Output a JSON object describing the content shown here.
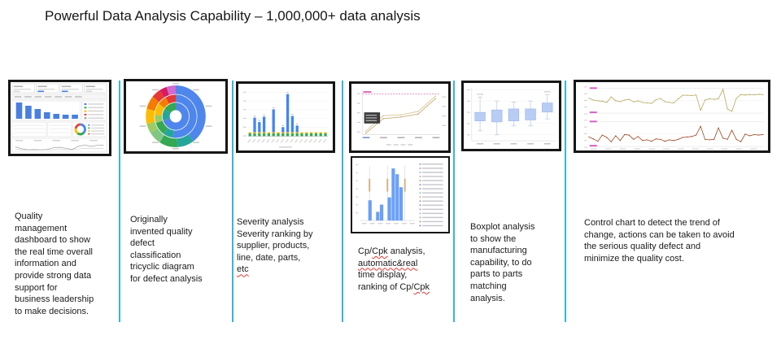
{
  "slide": {
    "title": "Powerful Data Analysis Capability – 1,000,000+ data analysis",
    "separator_color": "#35b4e5"
  },
  "panels": [
    {
      "id": "quality-dashboard",
      "description": "Quality\nmanagement\ndashboard to show\nthe real time overall\ninformation and\nprovide strong data\nsupport for\nbusiness leadership\nto make decisions.",
      "misspelled": [],
      "chart": {
        "type": "dashboard",
        "bar_values": [
          20,
          16,
          12,
          8,
          6,
          5,
          5
        ],
        "bar_color": "#4a7fe0",
        "donut_segments": [
          [
            "#4285f4",
            0.38
          ],
          [
            "#34a853",
            0.22
          ],
          [
            "#fbbc04",
            0.18
          ],
          [
            "#ea4335",
            0.22
          ]
        ],
        "trend_a": [
          0.5,
          0.25,
          0.1,
          0.12,
          0.1,
          0.12,
          0.35,
          0.45,
          0.3,
          0.15,
          0.55,
          0.75,
          0.55,
          0.7,
          0.72
        ],
        "trend_b": [
          0.15,
          0.1,
          0.05,
          0.06,
          0.05,
          0.08,
          0.1,
          0.15,
          0.1,
          0.08,
          0.2,
          0.3,
          0.25,
          0.3,
          0.28
        ]
      }
    },
    {
      "id": "tricyclic-diagram",
      "description": "Originally\ninvented quality\ndefect\nclassification\ntricyclic diagram\nfor defect analysis",
      "misspelled": [],
      "chart": {
        "type": "sunburst",
        "rings": [
          {
            "inner": 0.2,
            "outer": 0.44,
            "segments": [
              [
                "#4e86ec",
                0.7
              ],
              [
                "#26a69a",
                0.14
              ],
              [
                "#34a853",
                0.16
              ]
            ]
          },
          {
            "inner": 0.46,
            "outer": 0.7,
            "segments": [
              [
                "#4e86ec",
                0.52
              ],
              [
                "#26a69a",
                0.08
              ],
              [
                "#34a853",
                0.1
              ],
              [
                "#9ccc65",
                0.06
              ],
              [
                "#fbbc04",
                0.09
              ],
              [
                "#f57c00",
                0.07
              ],
              [
                "#e53935",
                0.08
              ]
            ]
          },
          {
            "inner": 0.72,
            "outer": 1.0,
            "segments": [
              [
                "#4e86ec",
                0.4
              ],
              [
                "#26a69a",
                0.09
              ],
              [
                "#34a853",
                0.1
              ],
              [
                "#81c784",
                0.07
              ],
              [
                "#9ccc65",
                0.05
              ],
              [
                "#fbbc04",
                0.08
              ],
              [
                "#f57c00",
                0.07
              ],
              [
                "#e53935",
                0.05
              ],
              [
                "#d81b60",
                0.04
              ],
              [
                "#ce6ad1",
                0.05
              ]
            ]
          }
        ],
        "label_count": 10
      }
    },
    {
      "id": "severity-analysis",
      "description": "Severity analysis\nSeverity ranking by\nsupplier, products,\nline, date, parts,\netc",
      "misspelled": [
        "etc"
      ],
      "chart": {
        "type": "severity_bars",
        "blue": [
          0.4,
          4.6,
          3.2,
          4.9,
          0.4,
          7.2,
          0.4,
          1.6,
          12,
          5.1,
          2.1,
          0.4,
          0.4,
          0.4,
          0.4,
          0.4,
          0.4
        ],
        "green_base": 0.9,
        "yellow_base": 0.35,
        "y_max": 13,
        "colors": {
          "blue": "#4285f4",
          "green": "#34a853",
          "yellow": "#fbbc04"
        }
      }
    },
    {
      "id": "cp-cpk-analysis",
      "description": "Cp/Cpk analysis,\nautomatic&real\ntime display,\nranking of Cp/Cpk",
      "misspelled": [
        "automatic&real",
        "Cpk"
      ],
      "chart": {
        "type": "cp_trend",
        "series_a": [
          0.08,
          0.44,
          0.46,
          0.54,
          0.9
        ],
        "series_b": [
          0.03,
          0.37,
          0.41,
          0.48,
          0.84
        ],
        "limit_y": 0.95,
        "line_color": "#d6c693",
        "limit_color": "#d96ab8"
      },
      "chart2": {
        "type": "histogram",
        "bins": [
          0,
          0,
          2.8,
          0,
          1.2,
          2.2,
          0,
          3.2,
          7.2,
          6.4,
          4.6,
          0,
          0,
          0
        ],
        "bar_color": "#6aa0f7",
        "limit_lines": [
          0.17,
          0.5,
          0.82
        ],
        "legend_rows": 16
      }
    },
    {
      "id": "boxplot-analysis",
      "description": "Boxplot analysis\nto show the\nmanufacturing\ncapability, to do\nparts to parts\nmatching\nanalysis.",
      "misspelled": [],
      "chart": {
        "type": "boxplot",
        "boxes": [
          [
            0.2,
            0.4,
            0.57,
            0.88
          ],
          [
            0.12,
            0.38,
            0.62,
            0.8
          ],
          [
            0.3,
            0.4,
            0.64,
            0.78
          ],
          [
            0.3,
            0.42,
            0.64,
            0.8
          ],
          [
            0.44,
            0.58,
            0.76,
            0.93
          ]
        ],
        "box_fill": "#b9cdf4",
        "box_stroke": "#9db9ec"
      }
    },
    {
      "id": "control-chart",
      "description": "Control chart to detect the trend of\nchange, actions can be taken to avoid\nthe serious quality defect and\nminimize the quality cost.",
      "misspelled": [],
      "chart": {
        "type": "control_chart",
        "limit_label_color": "#d65fc4",
        "upper": {
          "color": "#b3a85c",
          "series": [
            0.62,
            0.55,
            0.52,
            0.5,
            0.45,
            0.68,
            0.52,
            0.48,
            0.55,
            0.58,
            0.47,
            0.52,
            0.45,
            0.43,
            0.41,
            0.56,
            0.62,
            0.48,
            0.45,
            0.43,
            0.6,
            0.75,
            0.75,
            0.74,
            0.76,
            0.12,
            0.55,
            0.6,
            0.58,
            0.6,
            1.0,
            0.18,
            0.08,
            0.62,
            0.78,
            0.76,
            0.78,
            0.77,
            0.79,
            0.78
          ]
        },
        "lower": {
          "color": "#9c4722",
          "series": [
            0.4,
            0.32,
            0.22,
            0.48,
            0.38,
            0.2,
            0.45,
            0.25,
            0.5,
            0.48,
            0.3,
            0.42,
            0.25,
            0.28,
            0.22,
            0.32,
            0.3,
            0.22,
            0.28,
            0.25,
            0.3,
            0.38,
            0.4,
            0.42,
            0.48,
            0.85,
            0.3,
            0.28,
            0.3,
            0.78,
            0.35,
            0.3,
            0.68,
            0.3,
            0.2,
            0.52,
            0.45,
            0.5,
            0.48,
            0.5
          ]
        }
      }
    }
  ]
}
